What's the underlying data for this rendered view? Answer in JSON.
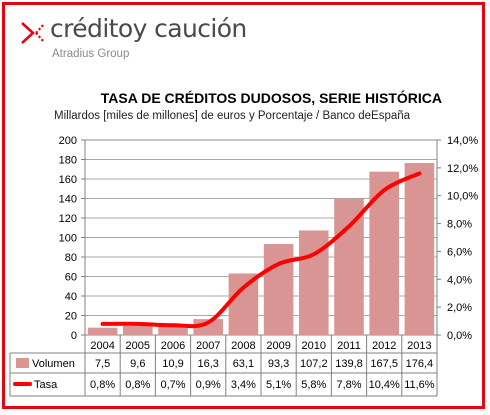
{
  "brand": {
    "name": "créditoy caución",
    "group": "Atradius Group",
    "accent": "#e30613",
    "text_color": "#4a4a4a"
  },
  "chart_data": {
    "type": "bar",
    "title": "TASA DE CRÉDITOS DUDOSOS, SERIE HISTÓRICA",
    "subtitle": "Millardos [miles de millones] de euros y Porcentaje / Banco deEspaña",
    "categories": [
      "2004",
      "2005",
      "2006",
      "2007",
      "2008",
      "2009",
      "2010",
      "2011",
      "2012",
      "2013"
    ],
    "series": [
      {
        "name": "Volumen",
        "type": "bar",
        "axis": "left",
        "color": "#d99594",
        "values": [
          7.5,
          9.6,
          10.9,
          16.3,
          63.1,
          93.3,
          107.2,
          139.8,
          167.5,
          176.4
        ],
        "labels": [
          "7,5",
          "9,6",
          "10,9",
          "16,3",
          "63,1",
          "93,3",
          "107,2",
          "139,8",
          "167,5",
          "176,4"
        ]
      },
      {
        "name": "Tasa",
        "type": "line",
        "axis": "right",
        "color": "#ff0000",
        "values": [
          0.8,
          0.8,
          0.7,
          0.9,
          3.4,
          5.1,
          5.8,
          7.8,
          10.4,
          11.6
        ],
        "labels": [
          "0,8%",
          "0,8%",
          "0,7%",
          "0,9%",
          "3,4%",
          "5,1%",
          "5,8%",
          "7,8%",
          "10,4%",
          "11,6%"
        ]
      }
    ],
    "ylim": [
      0,
      200
    ],
    "yticks": [
      "0",
      "20",
      "40",
      "60",
      "80",
      "100",
      "120",
      "140",
      "160",
      "180",
      "200"
    ],
    "y2lim": [
      0,
      14
    ],
    "y2ticks": [
      "0,0%",
      "2,0%",
      "4,0%",
      "6,0%",
      "8,0%",
      "10,0%",
      "12,0%",
      "14,0%"
    ],
    "grid": true,
    "legend": "data-table"
  }
}
